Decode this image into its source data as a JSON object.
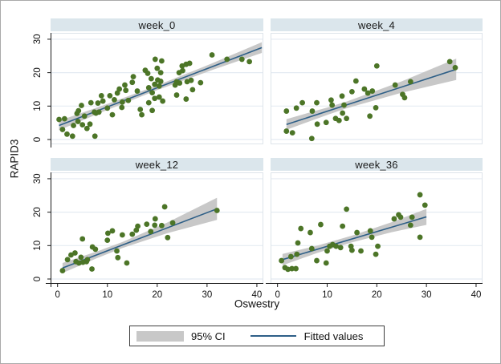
{
  "figure": {
    "ylabel": "RAPID3",
    "xlabel": "Oswestry"
  },
  "legend": {
    "ci_label": "95% CI",
    "fit_label": "Fitted values"
  },
  "axes": {
    "x_ticks": [
      0,
      10,
      20,
      30,
      40
    ],
    "y_ticks": [
      0,
      10,
      20,
      30
    ],
    "x_range": [
      -1.4,
      41.3
    ],
    "y_range": [
      -1.44,
      31.9
    ],
    "grid": "horizontal-only",
    "y_tick_label_angle": -90
  },
  "colors": {
    "point": "#4c7527",
    "line": "#2e5f87",
    "ci": "#c8c8c8",
    "band_bg": "#dbe6ec",
    "grid": "#e4ebf2",
    "plot_border": "#dde4ea",
    "axis": "#1a1a1a",
    "text": "#111111"
  },
  "chart_data": [
    {
      "type": "scatter",
      "title": "week_0",
      "xlabel": "Oswestry",
      "ylabel": "RAPID3",
      "xlim": [
        0,
        40
      ],
      "ylim": [
        0,
        30
      ],
      "fit_line": {
        "x1": 0.3,
        "y1": 4.2,
        "x2": 41.0,
        "y2": 27.5
      },
      "ci_band": {
        "x": [
          0.3,
          10,
          20,
          31,
          41
        ],
        "half_width": [
          1.4,
          0.9,
          0.7,
          1.0,
          1.6
        ]
      },
      "points": [
        [
          0.3,
          6
        ],
        [
          1,
          3
        ],
        [
          1.4,
          6.2
        ],
        [
          1.9,
          1.6
        ],
        [
          3,
          1
        ],
        [
          3.2,
          4.2
        ],
        [
          3.9,
          7.8
        ],
        [
          4.1,
          5.4
        ],
        [
          4.2,
          8.6
        ],
        [
          4.8,
          10.2
        ],
        [
          5,
          4.4
        ],
        [
          5.4,
          7
        ],
        [
          5.9,
          3.3
        ],
        [
          6.5,
          4.6
        ],
        [
          6.7,
          11
        ],
        [
          7.4,
          8.2
        ],
        [
          7.5,
          1
        ],
        [
          7.7,
          7.9
        ],
        [
          8.1,
          10.9
        ],
        [
          8.3,
          8.2
        ],
        [
          8.8,
          13.1
        ],
        [
          9.1,
          11.5
        ],
        [
          10,
          9.4
        ],
        [
          10.5,
          13.1
        ],
        [
          11,
          7.4
        ],
        [
          11.4,
          11.9
        ],
        [
          12,
          13.9
        ],
        [
          12.4,
          15.1
        ],
        [
          12.9,
          9.6
        ],
        [
          13,
          11.2
        ],
        [
          13.5,
          16.3
        ],
        [
          13.7,
          14.7
        ],
        [
          14.2,
          11.7
        ],
        [
          15,
          17.1
        ],
        [
          15.2,
          18.8
        ],
        [
          16,
          14.5
        ],
        [
          16.6,
          9
        ],
        [
          16.9,
          7.4
        ],
        [
          17.6,
          20.7
        ],
        [
          18.1,
          19.8
        ],
        [
          18.3,
          15.5
        ],
        [
          18.3,
          11
        ],
        [
          18.8,
          18.2
        ],
        [
          19,
          14
        ],
        [
          19,
          8.7
        ],
        [
          19.5,
          16.5
        ],
        [
          19.5,
          12.3
        ],
        [
          19.6,
          24
        ],
        [
          20,
          21.3
        ],
        [
          20.1,
          17.8
        ],
        [
          20.4,
          16
        ],
        [
          20.4,
          12.7
        ],
        [
          20.7,
          20
        ],
        [
          20.7,
          17.4
        ],
        [
          20.9,
          23.5
        ],
        [
          21.1,
          11.5
        ],
        [
          23.6,
          16.3
        ],
        [
          23.9,
          17.3
        ],
        [
          23.9,
          13.3
        ],
        [
          24.4,
          20
        ],
        [
          24.5,
          16.9
        ],
        [
          25,
          22
        ],
        [
          25.1,
          20.6
        ],
        [
          25.8,
          22.5
        ],
        [
          25.8,
          12.1
        ],
        [
          26,
          17.3
        ],
        [
          26.5,
          22.8
        ],
        [
          26.8,
          17.7
        ],
        [
          27.1,
          14.9
        ],
        [
          28.7,
          17
        ],
        [
          31,
          25.3
        ],
        [
          34,
          24
        ],
        [
          37,
          24
        ],
        [
          38.5,
          23.3
        ]
      ]
    },
    {
      "type": "scatter",
      "title": "week_4",
      "xlabel": "Oswestry",
      "ylabel": "RAPID3",
      "xlim": [
        0,
        40
      ],
      "ylim": [
        0,
        30
      ],
      "fit_line": {
        "x1": 1.8,
        "y1": 4.5,
        "x2": 36.0,
        "y2": 21.0
      },
      "ci_band": {
        "x": [
          1.8,
          10,
          14,
          25,
          36
        ],
        "half_width": [
          1.6,
          1.1,
          1.0,
          1.7,
          3.2
        ]
      },
      "points": [
        [
          1.8,
          2.5
        ],
        [
          3,
          2
        ],
        [
          6.9,
          0.3
        ],
        [
          1.8,
          8.5
        ],
        [
          3.8,
          9.4
        ],
        [
          5,
          11
        ],
        [
          7.9,
          11
        ],
        [
          7,
          8.5
        ],
        [
          8,
          4.6
        ],
        [
          9.8,
          5.1
        ],
        [
          10.8,
          11.8
        ],
        [
          11,
          10.3
        ],
        [
          11.7,
          6.3
        ],
        [
          12.4,
          5.7
        ],
        [
          13,
          13
        ],
        [
          13.4,
          10.3
        ],
        [
          13.1,
          7.9
        ],
        [
          13.9,
          6.3
        ],
        [
          15,
          14.3
        ],
        [
          15.8,
          17.5
        ],
        [
          17.5,
          15.1
        ],
        [
          18.2,
          13.9
        ],
        [
          19.1,
          14.5
        ],
        [
          20,
          22
        ],
        [
          19.8,
          9.5
        ],
        [
          18.6,
          7
        ],
        [
          23.7,
          16.3
        ],
        [
          25.2,
          13.5
        ],
        [
          25.6,
          12.5
        ],
        [
          26.8,
          17.3
        ],
        [
          34.7,
          23.3
        ],
        [
          35.8,
          21.5
        ]
      ]
    },
    {
      "type": "scatter",
      "title": "week_12",
      "xlabel": "Oswestry",
      "ylabel": "RAPID3",
      "xlim": [
        0,
        40
      ],
      "ylim": [
        0,
        30
      ],
      "fit_line": {
        "x1": 1.0,
        "y1": 3.3,
        "x2": 32.0,
        "y2": 21.0
      },
      "ci_band": {
        "x": [
          1,
          8,
          13,
          22,
          32
        ],
        "half_width": [
          1.5,
          1.0,
          0.9,
          1.6,
          3.3
        ]
      },
      "points": [
        [
          1,
          2.5
        ],
        [
          2,
          5.8
        ],
        [
          2.7,
          7.2
        ],
        [
          3.5,
          7.8
        ],
        [
          3.7,
          5.2
        ],
        [
          4.3,
          4.8
        ],
        [
          4.7,
          6.5
        ],
        [
          5,
          12
        ],
        [
          5.1,
          5
        ],
        [
          5.8,
          5.2
        ],
        [
          6,
          5.8
        ],
        [
          6.9,
          3
        ],
        [
          7,
          9.6
        ],
        [
          7.6,
          8.9
        ],
        [
          10,
          11.6
        ],
        [
          10.1,
          13.7
        ],
        [
          11,
          14.4
        ],
        [
          11.9,
          8.4
        ],
        [
          12.1,
          6.4
        ],
        [
          13,
          13.2
        ],
        [
          13.9,
          4.8
        ],
        [
          15,
          13.4
        ],
        [
          15.8,
          14.6
        ],
        [
          16.1,
          15.8
        ],
        [
          17.9,
          16.4
        ],
        [
          18.7,
          14.2
        ],
        [
          19.5,
          16.1
        ],
        [
          19.6,
          18
        ],
        [
          20.9,
          16
        ],
        [
          21.5,
          21.6
        ],
        [
          22.1,
          12.4
        ],
        [
          23.1,
          16.8
        ],
        [
          32,
          20.5
        ]
      ]
    },
    {
      "type": "scatter",
      "title": "week_36",
      "xlabel": "Oswestry",
      "ylabel": "RAPID3",
      "xlim": [
        0,
        40
      ],
      "ylim": [
        0,
        30
      ],
      "fit_line": {
        "x1": 1.0,
        "y1": 5.8,
        "x2": 30.0,
        "y2": 18.6
      },
      "ci_band": {
        "x": [
          1,
          8,
          15,
          23,
          30
        ],
        "half_width": [
          1.7,
          1.1,
          1.0,
          1.5,
          2.4
        ]
      },
      "points": [
        [
          0.8,
          5.5
        ],
        [
          1.5,
          3.4
        ],
        [
          2.1,
          2.9
        ],
        [
          2.9,
          3.1
        ],
        [
          2.7,
          6.7
        ],
        [
          3.7,
          3.1
        ],
        [
          3.9,
          7.4
        ],
        [
          4.1,
          10.8
        ],
        [
          4.7,
          15.1
        ],
        [
          6.6,
          13.9
        ],
        [
          6.9,
          9.1
        ],
        [
          7.9,
          5.5
        ],
        [
          8.7,
          16.3
        ],
        [
          9.8,
          4.8
        ],
        [
          10,
          8.4
        ],
        [
          10.5,
          9.8
        ],
        [
          11.1,
          10.3
        ],
        [
          11.8,
          9.8
        ],
        [
          12.7,
          9.4
        ],
        [
          13.1,
          15.8
        ],
        [
          13.9,
          20.9
        ],
        [
          14.8,
          9.8
        ],
        [
          15,
          8.6
        ],
        [
          16,
          13.9
        ],
        [
          16.8,
          8.4
        ],
        [
          18.7,
          14.4
        ],
        [
          19,
          12.5
        ],
        [
          19.8,
          7.4
        ],
        [
          20.2,
          9.8
        ],
        [
          23.5,
          18
        ],
        [
          24.4,
          19.2
        ],
        [
          24.8,
          18.5
        ],
        [
          26.8,
          16.1
        ],
        [
          27.1,
          18.5
        ],
        [
          28.7,
          25.2
        ],
        [
          29.7,
          22.1
        ],
        [
          28.7,
          12.5
        ]
      ]
    }
  ]
}
